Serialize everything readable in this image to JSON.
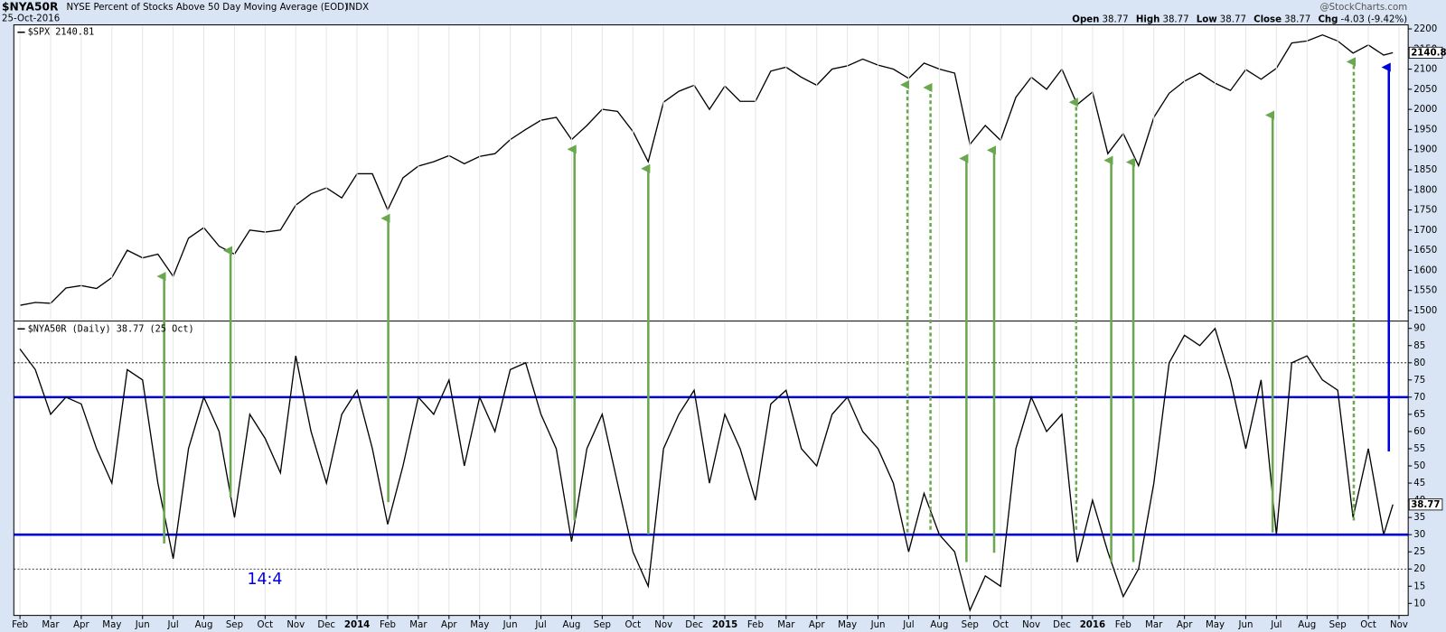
{
  "header": {
    "symbol": "$NYA50R",
    "description": "NYSE Percent of Stocks Above 50 Day Moving Average (EOD)",
    "exchange": "INDX",
    "date": "25-Oct-2016",
    "quote": [
      {
        "label": "Open",
        "value": "38.77"
      },
      {
        "label": "High",
        "value": "38.77"
      },
      {
        "label": "Low",
        "value": "38.77"
      },
      {
        "label": "Close",
        "value": "38.77"
      },
      {
        "label": "Chg",
        "value": "-4.03 (-9.42%)"
      }
    ],
    "credit": "@StockCharts.com"
  },
  "chart_data": [
    {
      "type": "line",
      "title": "$SPX 2140.81",
      "color": "#000000",
      "x": [
        0,
        0.5,
        1,
        1.5,
        2,
        2.5,
        3,
        3.5,
        4,
        4.5,
        5,
        5.5,
        6,
        6.5,
        7,
        7.5,
        8,
        8.5,
        9,
        9.5,
        10,
        10.5,
        11,
        11.5,
        12,
        12.5,
        13,
        13.5,
        14,
        14.5,
        15,
        15.5,
        16,
        16.5,
        17,
        17.5,
        18,
        18.5,
        19,
        19.5,
        20,
        20.5,
        21,
        21.5,
        22,
        22.5,
        23,
        23.5,
        24,
        24.5,
        25,
        25.5,
        26,
        26.5,
        27,
        27.5,
        28,
        28.5,
        29,
        29.5,
        30,
        30.5,
        31,
        31.5,
        32,
        32.5,
        33,
        33.5,
        34,
        34.5,
        35,
        35.5,
        36,
        36.5,
        37,
        37.5,
        38,
        38.5,
        39,
        39.5,
        40,
        40.5,
        41,
        41.5,
        42,
        42.5,
        43,
        43.5,
        44,
        44.5,
        44.8
      ],
      "values": [
        1513,
        1520,
        1518,
        1556,
        1562,
        1555,
        1582,
        1650,
        1631,
        1640,
        1585,
        1680,
        1706,
        1660,
        1640,
        1700,
        1695,
        1700,
        1762,
        1790,
        1805,
        1780,
        1840,
        1840,
        1750,
        1830,
        1859,
        1870,
        1885,
        1865,
        1883,
        1890,
        1925,
        1950,
        1973,
        1980,
        1925,
        1960,
        2000,
        1995,
        1945,
        1870,
        2018,
        2045,
        2060,
        2000,
        2058,
        2020,
        2020,
        2095,
        2105,
        2080,
        2060,
        2100,
        2108,
        2125,
        2110,
        2100,
        2077,
        2115,
        2100,
        2090,
        1913,
        1960,
        1923,
        2030,
        2080,
        2050,
        2100,
        2012,
        2043,
        1890,
        1940,
        1860,
        1980,
        2040,
        2070,
        2090,
        2065,
        2047,
        2099,
        2075,
        2102,
        2165,
        2170,
        2185,
        2170,
        2140,
        2160,
        2135,
        2140.81
      ],
      "xlim": [
        -0.2,
        45.3
      ],
      "ylim": [
        1475,
        2210
      ],
      "yticks": [
        1500,
        1550,
        1600,
        1650,
        1700,
        1750,
        1800,
        1850,
        1900,
        1950,
        2000,
        2050,
        2100,
        2150,
        2200
      ]
    },
    {
      "type": "line",
      "title": "$NYA50R (Daily) 38.77 (25 Oct)",
      "color": "#000000",
      "x": [
        0,
        0.5,
        1,
        1.5,
        2,
        2.5,
        3,
        3.5,
        4,
        4.5,
        5,
        5.5,
        6,
        6.5,
        7,
        7.5,
        8,
        8.5,
        9,
        9.5,
        10,
        10.5,
        11,
        11.5,
        12,
        12.5,
        13,
        13.5,
        14,
        14.5,
        15,
        15.5,
        16,
        16.5,
        17,
        17.5,
        18,
        18.5,
        19,
        19.5,
        20,
        20.5,
        21,
        21.5,
        22,
        22.5,
        23,
        23.5,
        24,
        24.5,
        25,
        25.5,
        26,
        26.5,
        27,
        27.5,
        28,
        28.5,
        29,
        29.5,
        30,
        30.5,
        31,
        31.5,
        32,
        32.5,
        33,
        33.5,
        34,
        34.5,
        35,
        35.5,
        36,
        36.5,
        37,
        37.5,
        38,
        38.5,
        39,
        39.5,
        40,
        40.5,
        41,
        41.5,
        42,
        42.5,
        43,
        43.5,
        44,
        44.5,
        44.8
      ],
      "values": [
        84,
        78,
        65,
        70,
        68,
        55,
        45,
        78,
        75,
        45,
        23,
        55,
        70,
        60,
        35,
        65,
        58,
        48,
        82,
        60,
        45,
        65,
        72,
        55,
        33,
        50,
        70,
        65,
        75,
        50,
        70,
        60,
        78,
        80,
        65,
        55,
        28,
        55,
        65,
        45,
        25,
        15,
        55,
        65,
        72,
        45,
        65,
        55,
        40,
        68,
        72,
        55,
        50,
        65,
        70,
        60,
        55,
        45,
        25,
        42,
        30,
        25,
        8,
        18,
        15,
        55,
        70,
        60,
        65,
        22,
        40,
        25,
        12,
        20,
        45,
        80,
        88,
        85,
        90,
        75,
        55,
        75,
        30,
        80,
        82,
        75,
        72,
        35,
        55,
        30,
        38.77
      ],
      "xlim": [
        -0.2,
        45.3
      ],
      "ylim": [
        6.5,
        92
      ],
      "yticks": [
        10,
        15,
        20,
        25,
        30,
        35,
        40,
        45,
        50,
        55,
        60,
        65,
        70,
        75,
        80,
        85,
        90
      ],
      "hlines": [
        {
          "value": 70,
          "color": "#0000dd",
          "style": "solid"
        },
        {
          "value": 30,
          "color": "#0000dd",
          "style": "solid"
        },
        {
          "value": 80,
          "color": "#000000",
          "style": "dotted"
        },
        {
          "value": 20,
          "color": "#000000",
          "style": "dotted"
        }
      ],
      "annotation": "14:4",
      "xticks": [
        {
          "value": 0,
          "label": "Feb"
        },
        {
          "value": 1,
          "label": "Mar"
        },
        {
          "value": 2,
          "label": "Apr"
        },
        {
          "value": 3,
          "label": "May"
        },
        {
          "value": 4,
          "label": "Jun"
        },
        {
          "value": 5,
          "label": "Jul"
        },
        {
          "value": 6,
          "label": "Aug"
        },
        {
          "value": 7,
          "label": "Sep"
        },
        {
          "value": 8,
          "label": "Oct"
        },
        {
          "value": 9,
          "label": "Nov"
        },
        {
          "value": 10,
          "label": "Dec"
        },
        {
          "value": 11,
          "label": "2014"
        },
        {
          "value": 12,
          "label": "Feb"
        },
        {
          "value": 13,
          "label": "Mar"
        },
        {
          "value": 14,
          "label": "Apr"
        },
        {
          "value": 15,
          "label": "May"
        },
        {
          "value": 16,
          "label": "Jun"
        },
        {
          "value": 17,
          "label": "Jul"
        },
        {
          "value": 18,
          "label": "Aug"
        },
        {
          "value": 19,
          "label": "Sep"
        },
        {
          "value": 20,
          "label": "Oct"
        },
        {
          "value": 21,
          "label": "Nov"
        },
        {
          "value": 22,
          "label": "Dec"
        },
        {
          "value": 23,
          "label": "2015"
        },
        {
          "value": 24,
          "label": "Feb"
        },
        {
          "value": 25,
          "label": "Mar"
        },
        {
          "value": 26,
          "label": "Apr"
        },
        {
          "value": 27,
          "label": "May"
        },
        {
          "value": 28,
          "label": "Jun"
        },
        {
          "value": 29,
          "label": "Jul"
        },
        {
          "value": 30,
          "label": "Aug"
        },
        {
          "value": 31,
          "label": "Sep"
        },
        {
          "value": 32,
          "label": "Oct"
        },
        {
          "value": 33,
          "label": "Nov"
        },
        {
          "value": 34,
          "label": "Dec"
        },
        {
          "value": 35,
          "label": "2016"
        },
        {
          "value": 36,
          "label": "Feb"
        },
        {
          "value": 37,
          "label": "Mar"
        },
        {
          "value": 38,
          "label": "Apr"
        },
        {
          "value": 39,
          "label": "May"
        },
        {
          "value": 40,
          "label": "Jun"
        },
        {
          "value": 41,
          "label": "Jul"
        },
        {
          "value": 42,
          "label": "Aug"
        },
        {
          "value": 43,
          "label": "Sep"
        },
        {
          "value": 44,
          "label": "Oct"
        },
        {
          "value": 45,
          "label": "Nov"
        }
      ]
    }
  ]
}
